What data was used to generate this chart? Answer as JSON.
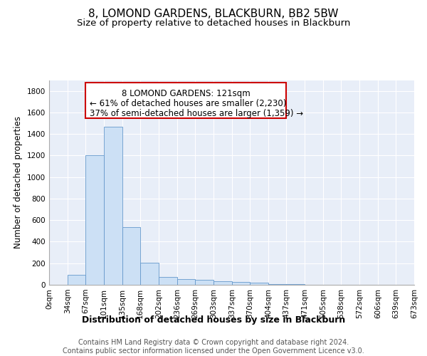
{
  "title1": "8, LOMOND GARDENS, BLACKBURN, BB2 5BW",
  "title2": "Size of property relative to detached houses in Blackburn",
  "xlabel": "Distribution of detached houses by size in Blackburn",
  "ylabel": "Number of detached properties",
  "bin_edges": [
    0,
    34,
    67,
    101,
    135,
    168,
    202,
    236,
    269,
    303,
    337,
    370,
    404,
    437,
    471,
    505,
    538,
    572,
    606,
    639,
    673
  ],
  "bar_heights": [
    0,
    90,
    1200,
    1470,
    535,
    205,
    70,
    50,
    45,
    35,
    25,
    20,
    5,
    5,
    0,
    0,
    0,
    0,
    0,
    0
  ],
  "bar_color": "#cce0f5",
  "bar_edge_color": "#6699cc",
  "bg_color": "#e8eef8",
  "property_size": 121,
  "marker_color": "#000000",
  "annotation_box_edgecolor": "#cc0000",
  "annotation_text_line1": "8 LOMOND GARDENS: 121sqm",
  "annotation_text_line2": "← 61% of detached houses are smaller (2,230)",
  "annotation_text_line3": "37% of semi-detached houses are larger (1,359) →",
  "ylim": [
    0,
    1900
  ],
  "yticks": [
    0,
    200,
    400,
    600,
    800,
    1000,
    1200,
    1400,
    1600,
    1800
  ],
  "tick_labels": [
    "0sqm",
    "34sqm",
    "67sqm",
    "101sqm",
    "135sqm",
    "168sqm",
    "202sqm",
    "236sqm",
    "269sqm",
    "303sqm",
    "337sqm",
    "370sqm",
    "404sqm",
    "437sqm",
    "471sqm",
    "505sqm",
    "538sqm",
    "572sqm",
    "606sqm",
    "639sqm",
    "673sqm"
  ],
  "footnote": "Contains HM Land Registry data © Crown copyright and database right 2024.\nContains public sector information licensed under the Open Government Licence v3.0.",
  "title1_fontsize": 11,
  "title2_fontsize": 9.5,
  "xlabel_fontsize": 9,
  "ylabel_fontsize": 8.5,
  "tick_fontsize": 7.5,
  "annotation_fontsize": 8.5,
  "footnote_fontsize": 7
}
